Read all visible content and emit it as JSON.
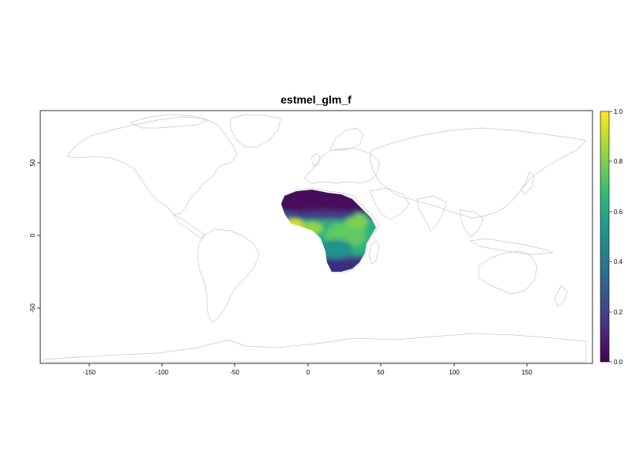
{
  "title": "estmel_glm_f",
  "x_ticks": [
    "-150",
    "-100",
    "-50",
    "0",
    "50",
    "100",
    "150"
  ],
  "y_ticks": [
    "50",
    "0",
    "-50"
  ],
  "legend": {
    "ticks": [
      "0.0",
      "0.2",
      "0.4",
      "0.6",
      "0.8",
      "1.0"
    ],
    "min": 0,
    "max": 1,
    "palette": [
      "#440154",
      "#482878",
      "#3e4a89",
      "#31688e",
      "#26828e",
      "#1f9e89",
      "#35b779",
      "#6ece58",
      "#b5de2b",
      "#fde725"
    ]
  },
  "chart_data": {
    "type": "heatmap",
    "title": "estmel_glm_f",
    "xlim": [
      -180,
      180
    ],
    "ylim": [
      -90,
      90
    ],
    "x_ticks": [
      -150,
      -100,
      -50,
      0,
      50,
      100,
      150
    ],
    "y_ticks": [
      50,
      0,
      -50
    ],
    "value_range": [
      0,
      1
    ],
    "colorscale": "viridis",
    "basemap": "world country outlines",
    "predicted_extent": "sub-Saharan Africa",
    "notable_values": [
      {
        "region": "Sahel / northern band (~10-25N)",
        "value": 0.05
      },
      {
        "region": "West African coast (~5-10N)",
        "value": 0.9
      },
      {
        "region": "East Africa (~0-10N, 30-45E)",
        "value": 0.65
      },
      {
        "region": "Central Africa (~0-10S)",
        "value": 0.6
      },
      {
        "region": "Southern Africa (~15-25S)",
        "value": 0.2
      }
    ]
  },
  "colors": {
    "coastline": "#c8c8c8",
    "frame": "#000000",
    "background": "#ffffff"
  }
}
